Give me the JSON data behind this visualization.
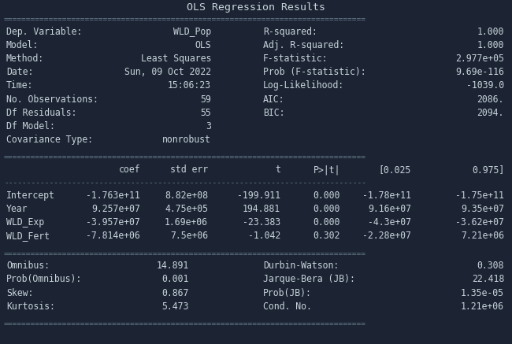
{
  "title": "OLS Regression Results",
  "bg_color": "#1c2433",
  "text_color": "#c8d4dc",
  "sep_color": "#6a7f90",
  "font_size": 8.3,
  "title_font_size": 9.5,
  "top_left": [
    [
      "Dep. Variable:",
      "WLD_Pop"
    ],
    [
      "Model:",
      "OLS"
    ],
    [
      "Method:",
      "Least Squares"
    ],
    [
      "Date:",
      "Sun, 09 Oct 2022"
    ],
    [
      "Time:",
      "15:06:23"
    ],
    [
      "No. Observations:",
      "59"
    ],
    [
      "Df Residuals:",
      "55"
    ],
    [
      "Df Model:",
      "3"
    ],
    [
      "Covariance Type:",
      "nonrobust"
    ]
  ],
  "top_right": [
    [
      "R-squared:",
      "1.000"
    ],
    [
      "Adj. R-squared:",
      "1.000"
    ],
    [
      "F-statistic:",
      "2.977e+05"
    ],
    [
      "Prob (F-statistic):",
      "9.69e-116"
    ],
    [
      "Log-Likelihood:",
      "-1039.0"
    ],
    [
      "AIC:",
      "2086."
    ],
    [
      "BIC:",
      "2094."
    ]
  ],
  "mid_headers": [
    "",
    "coef",
    "std err",
    "t",
    "P>|t|",
    "[0.025",
    "0.975]"
  ],
  "mid_rows": [
    [
      "Intercept",
      "-1.763e+11",
      "8.82e+08",
      "-199.911",
      "0.000",
      "-1.78e+11",
      "-1.75e+11"
    ],
    [
      "Year",
      "9.257e+07",
      "4.75e+05",
      "194.881",
      "0.000",
      "9.16e+07",
      "9.35e+07"
    ],
    [
      "WLD_Exp",
      "-3.957e+07",
      "1.69e+06",
      "-23.383",
      "0.000",
      "-4.3e+07",
      "-3.62e+07"
    ],
    [
      "WLD_Fert",
      "-7.814e+06",
      "7.5e+06",
      "-1.042",
      "0.302",
      "-2.28e+07",
      "7.21e+06"
    ]
  ],
  "bot_left": [
    [
      "Omnibus:",
      "14.891"
    ],
    [
      "Prob(Omnibus):",
      "0.001"
    ],
    [
      "Skew:",
      "0.867"
    ],
    [
      "Kurtosis:",
      "5.473"
    ]
  ],
  "bot_right": [
    [
      "Durbin-Watson:",
      "0.308"
    ],
    [
      "Jarque-Bera (JB):",
      "22.418"
    ],
    [
      "Prob(JB):",
      "1.35e-05"
    ],
    [
      "Cond. No.",
      "1.21e+06"
    ]
  ]
}
